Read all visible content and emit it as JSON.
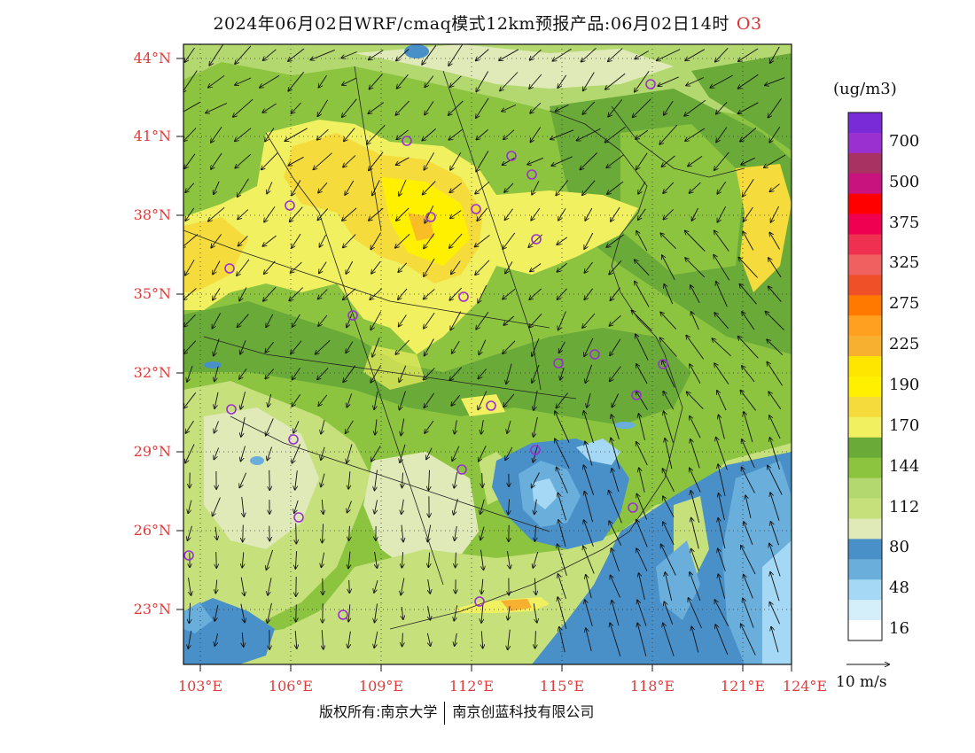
{
  "title": {
    "text": "2024年06月02日WRF/cmaq模式12km预报产品:06月02日14时",
    "pollutant": "O3"
  },
  "lat_labels": [
    "44°N",
    "41°N",
    "38°N",
    "35°N",
    "32°N",
    "29°N",
    "26°N",
    "23°N"
  ],
  "lon_labels": [
    "103°E",
    "106°E",
    "109°E",
    "112°E",
    "115°E",
    "118°E",
    "121°E",
    "124°E"
  ],
  "legend": {
    "unit": "(ug/m3)",
    "levels": [
      {
        "label": "",
        "color": "#7a2bd8"
      },
      {
        "label": "700",
        "color": "#9b30d0"
      },
      {
        "label": "",
        "color": "#a83262"
      },
      {
        "label": "500",
        "color": "#c8127e"
      },
      {
        "label": "",
        "color": "#ff0000"
      },
      {
        "label": "375",
        "color": "#f00050"
      },
      {
        "label": "",
        "color": "#f03050"
      },
      {
        "label": "325",
        "color": "#f06060"
      },
      {
        "label": "",
        "color": "#f05028"
      },
      {
        "label": "275",
        "color": "#ff7800"
      },
      {
        "label": "",
        "color": "#ffa020"
      },
      {
        "label": "225",
        "color": "#f8b030"
      },
      {
        "label": "",
        "color": "#ffe600"
      },
      {
        "label": "190",
        "color": "#fff000"
      },
      {
        "label": "",
        "color": "#f5dc3c"
      },
      {
        "label": "170",
        "color": "#f0f060"
      },
      {
        "label": "",
        "color": "#6aaa38"
      },
      {
        "label": "144",
        "color": "#8cc440"
      },
      {
        "label": "",
        "color": "#b4d870"
      },
      {
        "label": "112",
        "color": "#c6e07c"
      },
      {
        "label": "",
        "color": "#dfeab8"
      },
      {
        "label": "80",
        "color": "#4a90c8"
      },
      {
        "label": "",
        "color": "#6aaedc"
      },
      {
        "label": "48",
        "color": "#a4d8f4"
      },
      {
        "label": "",
        "color": "#d4eefa"
      },
      {
        "label": "16",
        "color": "#ffffff"
      }
    ]
  },
  "wind_vector": {
    "label": "10 m/s"
  },
  "copyright": {
    "left": "版权所有:南京大学",
    "right": "南京创蓝科技有限公司"
  }
}
